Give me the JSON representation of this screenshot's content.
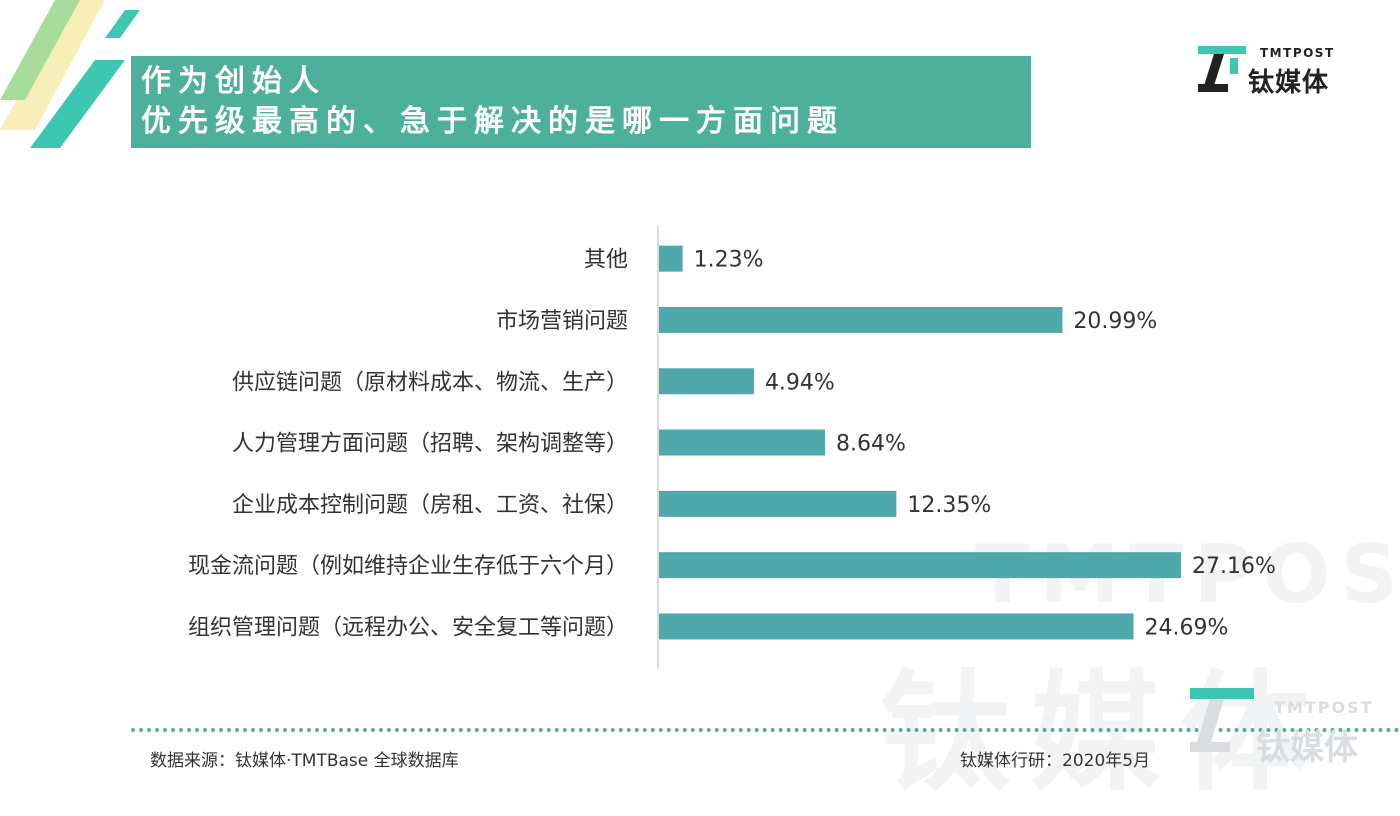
{
  "title": {
    "line1": "作为创始人",
    "line2": "优先级最高的、急于解决的是哪一方面问题"
  },
  "logo": {
    "en": "TMTPOST",
    "cn": "钛媒体"
  },
  "watermark": {
    "en": "TMTPOST",
    "cn": "钛媒体"
  },
  "colors": {
    "accent": "#4cb09a",
    "bar": "#4fa8ab",
    "deco_light": "#a8dc9c",
    "deco_pale": "#f8efb8"
  },
  "chart_data": {
    "type": "bar",
    "orientation": "horizontal",
    "categories": [
      "其他",
      "市场营销问题",
      "供应链问题（原材料成本、物流、生产）",
      "人力管理方面问题（招聘、架构调整等）",
      "企业成本控制问题（房租、工资、社保）",
      "现金流问题（例如维持企业生存低于六个月）",
      "组织管理问题（远程办公、安全复工等问题）"
    ],
    "values": [
      1.23,
      20.99,
      4.94,
      8.64,
      12.35,
      27.16,
      24.69
    ],
    "value_labels": [
      "1.23%",
      "20.99%",
      "4.94%",
      "8.64%",
      "12.35%",
      "27.16%",
      "24.69%"
    ],
    "unit": "%",
    "xlim": [
      0,
      30
    ],
    "title": "作为创始人 优先级最高的、急于解决的是哪一方面问题"
  },
  "footer": {
    "source": "数据来源：钛媒体·TMTBase 全球数据库",
    "credit": "钛媒体行研：2020年5月"
  }
}
